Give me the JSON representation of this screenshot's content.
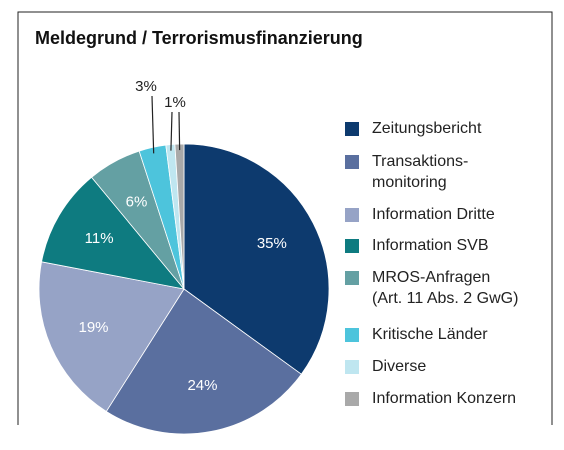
{
  "chart_data": {
    "type": "pie",
    "title": "Meldegrund / Terrorismusfinanzierung",
    "categories": [
      "Zeitungsbericht",
      "Transaktions-\nmonitoring",
      "Information Dritte",
      "Information SVB",
      "MROS-Anfragen\n(Art. 11 Abs. 2 GwG)",
      "Kritische Länder",
      "Diverse",
      "Information Konzern"
    ],
    "values": [
      35,
      24,
      19,
      11,
      6,
      3,
      1,
      1
    ],
    "value_labels": [
      "35%",
      "24%",
      "19%",
      "11%",
      "6%",
      "3%",
      "1%",
      null
    ],
    "colors": [
      "#0d3a6e",
      "#5a6f9f",
      "#96a3c6",
      "#0e7b80",
      "#64a0a3",
      "#4dc4dc",
      "#bfe6f0",
      "#a9a9a9"
    ]
  }
}
